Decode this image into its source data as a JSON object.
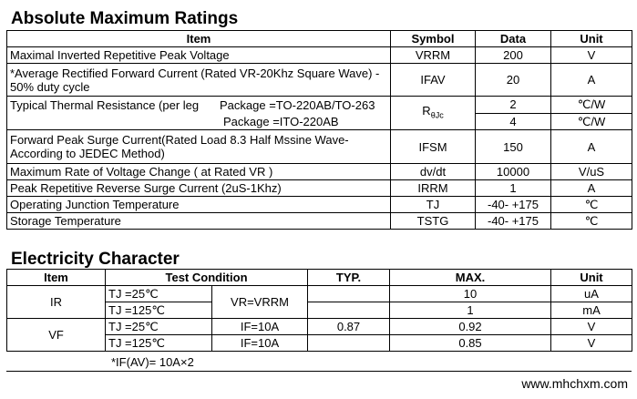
{
  "ratings": {
    "title": "Absolute Maximum Ratings",
    "header": [
      "Item",
      "Symbol",
      "Data",
      "Unit"
    ],
    "rows": [
      [
        "Maximal Inverted Repetitive  Peak Voltage",
        "VRRM",
        "200",
        "V"
      ],
      [
        "*Average Rectified Forward Current (Rated VR-20Khz Square Wave) - 50% duty cycle",
        "IFAV",
        "20",
        "A"
      ],
      [
        "Forward Peak Surge Current(Rated Load 8.3 Half Mssine Wave-According to JEDEC Method)",
        "IFSM",
        "150",
        "A"
      ],
      [
        "Maximum Rate of Voltage Change ( at Rated VR )",
        "dv/dt",
        "10000",
        "V/uS"
      ],
      [
        "Peak Repetitive Reverse Surge Current (2uS-1Khz)",
        "IRRM",
        "1",
        "A"
      ],
      [
        "Operating Junction Temperature",
        "TJ",
        "-40- +175",
        "℃"
      ],
      [
        "Storage Temperature",
        "TSTG",
        "-40- +175",
        "℃"
      ]
    ],
    "thermal": {
      "item": "Typical Thermal Resistance (per leg",
      "packages": [
        "Package =TO-220AB/TO-263",
        "Package =ITO-220AB"
      ],
      "symbol": "R",
      "symbol_sub": "θJc",
      "data": [
        "2",
        "4"
      ],
      "units": [
        "℃/W",
        "℃/W"
      ]
    }
  },
  "electricity": {
    "title": "Electricity Character",
    "header": [
      "Item",
      "Test  Condition",
      "TYP.",
      "MAX.",
      "Unit"
    ],
    "ir": {
      "item": "IR",
      "conditions": [
        "TJ =25℃",
        "TJ =125℃"
      ],
      "vr": "VR=VRRM",
      "max": [
        "10",
        "1"
      ],
      "units": [
        "uA",
        "mA"
      ]
    },
    "vf": {
      "item": "VF",
      "conditions": [
        "TJ =25℃",
        "TJ =125℃"
      ],
      "if": [
        "IF=10A",
        "IF=10A"
      ],
      "typ": "0.87",
      "max": [
        "0.92",
        "0.85"
      ],
      "units": [
        "V",
        "V"
      ]
    },
    "note": "*IF(AV)= 10A×2"
  },
  "footer": {
    "url": "www.mhchxm.com"
  }
}
